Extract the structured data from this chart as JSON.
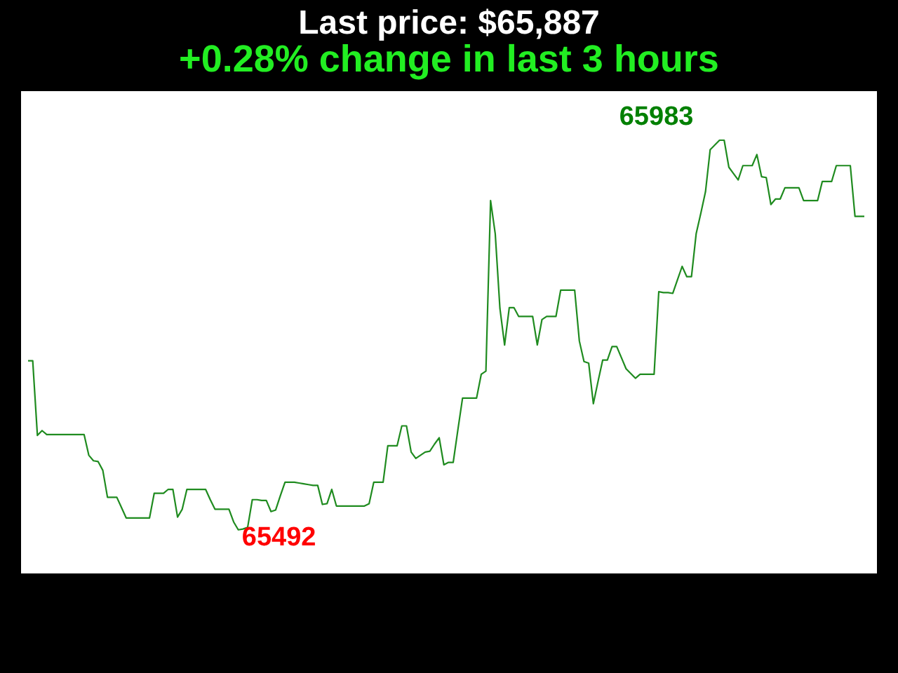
{
  "chart_data": {
    "type": "line",
    "title": "Last price: $65,887",
    "subtitle": "+0.28% change in last 3 hours",
    "categories": [
      null,
      null,
      null,
      null,
      null,
      null,
      null,
      null,
      null,
      null,
      null,
      null,
      null,
      null,
      null,
      null,
      null,
      null,
      null,
      null,
      null,
      null,
      null,
      null,
      null,
      null,
      null,
      null,
      null,
      null,
      null,
      null,
      null,
      null,
      null,
      null,
      null,
      null,
      null,
      null,
      null,
      null,
      null,
      null,
      null,
      null,
      null,
      null,
      null,
      null,
      null,
      null,
      null,
      null,
      null,
      null,
      null,
      null,
      null,
      null,
      null,
      null,
      null,
      null,
      null,
      null,
      null,
      null,
      null,
      null,
      null,
      null,
      null,
      null,
      null,
      null,
      null,
      null,
      null,
      null,
      null,
      null,
      null,
      null,
      null,
      null,
      null,
      null,
      null,
      null,
      null,
      null,
      null,
      null,
      null,
      null,
      null,
      null,
      null,
      null,
      null,
      null,
      null,
      null,
      null,
      null,
      null,
      null,
      null,
      null,
      null,
      null,
      null,
      null,
      null,
      null,
      null,
      null,
      null,
      null,
      null,
      null,
      null,
      null,
      null,
      null,
      null,
      null,
      null,
      null,
      null,
      null,
      null,
      null,
      null,
      null,
      null,
      null,
      null,
      null,
      null,
      null,
      null,
      null,
      null,
      null,
      null,
      null,
      null,
      null,
      null,
      null,
      null,
      null,
      null,
      null,
      null,
      null,
      null,
      null,
      null,
      null,
      null,
      null,
      null,
      null,
      null,
      null,
      null,
      null,
      null,
      null,
      null,
      null,
      null,
      null,
      null,
      null,
      null,
      null
    ],
    "series": [
      {
        "color": "#1f8b1f",
        "values": [
          65705,
          65705,
          65611,
          65617,
          65612,
          65612,
          65612,
          65612,
          65612,
          65612,
          65612,
          65612,
          65612,
          65586,
          65579,
          65578,
          65567,
          65533,
          65533,
          65533,
          65520,
          65507,
          65507,
          65507,
          65507,
          65507,
          65507,
          65538,
          65538,
          65538,
          65543,
          65543,
          65508,
          65518,
          65543,
          65543,
          65543,
          65543,
          65543,
          65530,
          65518,
          65518,
          65518,
          65518,
          65502,
          65492,
          65493,
          65495,
          65530,
          65530,
          65529,
          65529,
          65515,
          65517,
          65535,
          65552,
          65552,
          65552,
          65551,
          65550,
          65549,
          65548,
          65548,
          65524,
          65525,
          65543,
          65522,
          65522,
          65522,
          65522,
          65522,
          65522,
          65522,
          65525,
          65552,
          65552,
          65552,
          65598,
          65598,
          65598,
          65623,
          65623,
          65590,
          65582,
          65586,
          65590,
          65591,
          65600,
          65608,
          65574,
          65577,
          65577,
          65618,
          65658,
          65658,
          65658,
          65658,
          65688,
          65692,
          65907,
          65865,
          65771,
          65725,
          65772,
          65772,
          65761,
          65761,
          65761,
          65761,
          65725,
          65757,
          65761,
          65761,
          65761,
          65794,
          65794,
          65794,
          65794,
          65730,
          65704,
          65702,
          65651,
          65679,
          65706,
          65706,
          65723,
          65723,
          65709,
          65695,
          65689,
          65683,
          65688,
          65688,
          65688,
          65688,
          65792,
          65791,
          65791,
          65790,
          65807,
          65824,
          65811,
          65811,
          65865,
          65891,
          65918,
          65971,
          65977,
          65983,
          65983,
          65949,
          65941,
          65933,
          65951,
          65951,
          65951,
          65965,
          65937,
          65936,
          65902,
          65909,
          65909,
          65923,
          65923,
          65923,
          65923,
          65907,
          65907,
          65907,
          65907,
          65931,
          65931,
          65931,
          65951,
          65951,
          65951,
          65951,
          65887,
          65887,
          65887
        ],
        "value_labels": [
          null,
          null,
          null,
          null,
          null,
          null,
          null,
          null,
          null,
          null,
          null,
          null,
          null,
          null,
          null,
          null,
          null,
          null,
          null,
          null,
          null,
          null,
          null,
          null,
          null,
          null,
          null,
          null,
          null,
          null,
          null,
          null,
          null,
          null,
          null,
          null,
          null,
          null,
          null,
          null,
          null,
          null,
          null,
          null,
          null,
          "65492",
          null,
          null,
          null,
          null,
          null,
          null,
          null,
          null,
          null,
          null,
          null,
          null,
          null,
          null,
          null,
          null,
          null,
          null,
          null,
          null,
          null,
          null,
          null,
          null,
          null,
          null,
          null,
          null,
          null,
          null,
          null,
          null,
          null,
          null,
          null,
          null,
          null,
          null,
          null,
          null,
          null,
          null,
          null,
          null,
          null,
          null,
          null,
          null,
          null,
          null,
          null,
          null,
          null,
          null,
          null,
          null,
          null,
          null,
          null,
          null,
          null,
          null,
          null,
          null,
          null,
          null,
          null,
          null,
          null,
          null,
          null,
          null,
          null,
          null,
          null,
          null,
          null,
          null,
          null,
          null,
          null,
          null,
          null,
          null,
          null,
          null,
          null,
          null,
          null,
          null,
          null,
          null,
          null,
          null,
          null,
          null,
          null,
          null,
          null,
          null,
          null,
          null,
          "65983",
          null,
          null,
          null,
          null,
          null,
          null,
          null,
          null,
          null,
          null,
          null,
          null,
          null,
          null,
          null,
          null,
          null,
          null,
          null,
          null,
          null,
          null,
          null,
          null,
          null,
          null,
          null,
          null,
          null,
          null,
          null
        ]
      }
    ]
  }
}
